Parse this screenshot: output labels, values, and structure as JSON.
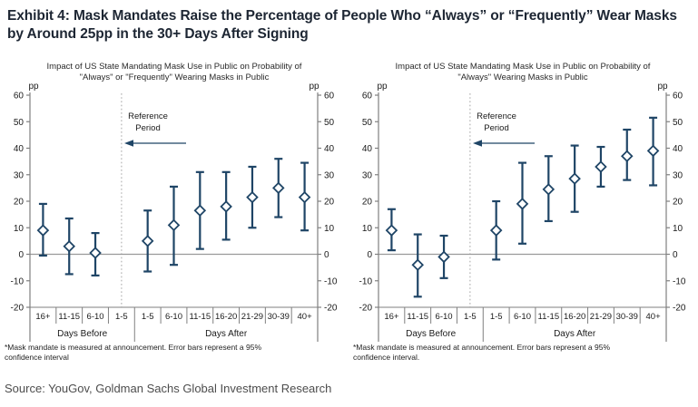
{
  "title": "Exhibit 4: Mask Mandates Raise the Percentage of People Who “Always” or “Frequently” Wear Masks by Around 25pp in the 30+ Days After Signing",
  "source": "Source: YouGov, Goldman Sachs Global Investment Research",
  "colors": {
    "series_navy": "#1F4566",
    "marker_fill": "#FFFFFF",
    "axis_gray": "#808080",
    "zero_line_gray": "#999999",
    "reference_line_gray": "#B3B3B3",
    "text_dark": "#1A1A1A"
  },
  "annotation": {
    "lines": [
      "Reference",
      "Period"
    ]
  },
  "chart_data": [
    {
      "type": "scatter",
      "title": "Impact of US State Mandating Mask Use in Public on Probability of \"Always\" or \"Frequently\" Wearing Masks in Public",
      "ylabel": "pp",
      "ylim": [
        -20,
        60
      ],
      "yticks": [
        60,
        50,
        40,
        30,
        20,
        10,
        0,
        -10,
        -20
      ],
      "grid": false,
      "legend": "none",
      "categories": [
        "16+",
        "11-15",
        "6-10",
        "1-5",
        "1-5",
        "6-10",
        "11-15",
        "16-20",
        "21-29",
        "30-39",
        "40+"
      ],
      "groups": [
        {
          "label": "Days Before",
          "span": 4
        },
        {
          "label": "Days After",
          "span": 7
        }
      ],
      "reference_index": 3,
      "points": [
        {
          "category": "16+",
          "value": 9,
          "lo": -0.5,
          "hi": 19
        },
        {
          "category": "11-15",
          "value": 3,
          "lo": -7.5,
          "hi": 13.5
        },
        {
          "category": "6-10",
          "value": 0.5,
          "lo": -8,
          "hi": 8
        },
        {
          "category": "1-5",
          "value": null,
          "lo": null,
          "hi": null,
          "reference": true
        },
        {
          "category": "1-5",
          "value": 5,
          "lo": -6.5,
          "hi": 16.5
        },
        {
          "category": "6-10",
          "value": 11,
          "lo": -4,
          "hi": 25.5
        },
        {
          "category": "11-15",
          "value": 16.5,
          "lo": 2,
          "hi": 31
        },
        {
          "category": "16-20",
          "value": 18,
          "lo": 5.5,
          "hi": 31
        },
        {
          "category": "21-29",
          "value": 21.5,
          "lo": 10,
          "hi": 33
        },
        {
          "category": "30-39",
          "value": 25,
          "lo": 14,
          "hi": 36
        },
        {
          "category": "40+",
          "value": 21.5,
          "lo": 9,
          "hi": 34.5
        }
      ],
      "footnote": "*Mask mandate is measured at announcement. Error bars represent a 95% confidence interval"
    },
    {
      "type": "scatter",
      "title": "Impact of US State Mandating Mask Use in Public on Probability of \"Always\" Wearing Masks in Public",
      "ylabel": "pp",
      "ylim": [
        -20,
        60
      ],
      "yticks": [
        60,
        50,
        40,
        30,
        20,
        10,
        0,
        -10,
        -20
      ],
      "grid": false,
      "legend": "none",
      "categories": [
        "16+",
        "11-15",
        "6-10",
        "1-5",
        "1-5",
        "6-10",
        "11-15",
        "16-20",
        "21-29",
        "30-39",
        "40+"
      ],
      "groups": [
        {
          "label": "Days Before",
          "span": 4
        },
        {
          "label": "Days After",
          "span": 7
        }
      ],
      "reference_index": 3,
      "points": [
        {
          "category": "16+",
          "value": 9,
          "lo": 1.5,
          "hi": 17
        },
        {
          "category": "11-15",
          "value": -4,
          "lo": -16,
          "hi": 7.5
        },
        {
          "category": "6-10",
          "value": -1,
          "lo": -9,
          "hi": 7
        },
        {
          "category": "1-5",
          "value": null,
          "lo": null,
          "hi": null,
          "reference": true
        },
        {
          "category": "1-5",
          "value": 9,
          "lo": -2,
          "hi": 20
        },
        {
          "category": "6-10",
          "value": 19,
          "lo": 4,
          "hi": 34.5
        },
        {
          "category": "11-15",
          "value": 24.5,
          "lo": 12.5,
          "hi": 37
        },
        {
          "category": "16-20",
          "value": 28.5,
          "lo": 16,
          "hi": 41
        },
        {
          "category": "21-29",
          "value": 33,
          "lo": 25.5,
          "hi": 40.5
        },
        {
          "category": "30-39",
          "value": 37,
          "lo": 28,
          "hi": 47
        },
        {
          "category": "40+",
          "value": 39,
          "lo": 26,
          "hi": 51.5
        }
      ],
      "footnote": "*Mask mandate is measured at announcement. Error bars represent a 95% confidence interval."
    }
  ]
}
